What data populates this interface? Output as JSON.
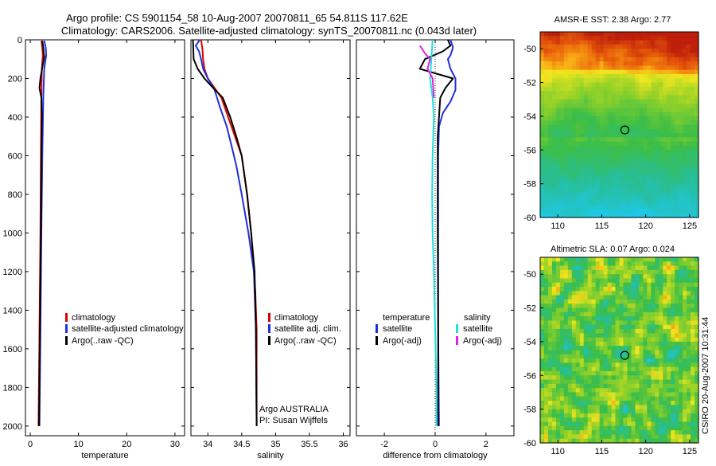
{
  "header": {
    "line1": "Argo profile: CS 5901154_58 10-Aug-2007 20070811_65 54.811S 117.62E",
    "line2": "Climatology: CARS2006. Satellite-adjusted climatology: synTS_20070811.nc (0.043d later)"
  },
  "side_label": "CSIRO 20-Aug-2007 10:31:44",
  "colors": {
    "red": "#dd0000",
    "blue": "#1f2fd8",
    "black": "#000000",
    "cyan": "#22dddd",
    "magenta": "#dd22dd"
  },
  "depth_ticks": [
    "0",
    "200",
    "400",
    "600",
    "800",
    "1000",
    "1200",
    "1400",
    "1600",
    "1800",
    "2000"
  ],
  "chart_data": [
    {
      "type": "line",
      "id": "temperature",
      "xlabel": "temperature",
      "xlim": [
        -1,
        32
      ],
      "ylim": [
        2050,
        0
      ],
      "xticks": [
        "0",
        "10",
        "20",
        "30"
      ],
      "xtick_values": [
        0,
        10,
        20,
        30
      ],
      "legend": [
        "climatology",
        "satellite-adjusted climatology",
        "Argo(..raw -QC)"
      ],
      "series": [
        {
          "name": "climatology",
          "color": "red",
          "points": [
            [
              2.3,
              5
            ],
            [
              2.5,
              40
            ],
            [
              2.6,
              80
            ],
            [
              2.4,
              150
            ],
            [
              2.3,
              300
            ],
            [
              2.2,
              600
            ],
            [
              2.1,
              1000
            ],
            [
              1.9,
              1500
            ],
            [
              1.7,
              2000
            ]
          ]
        },
        {
          "name": "satellite-adjusted climatology",
          "color": "blue",
          "points": [
            [
              2.9,
              5
            ],
            [
              3.2,
              40
            ],
            [
              3.3,
              80
            ],
            [
              2.9,
              150
            ],
            [
              2.7,
              300
            ],
            [
              2.5,
              600
            ],
            [
              2.3,
              1000
            ],
            [
              2.1,
              1500
            ],
            [
              1.9,
              2000
            ]
          ]
        },
        {
          "name": "Argo(..raw -QC)",
          "color": "black",
          "points": [
            [
              2.5,
              5
            ],
            [
              2.7,
              40
            ],
            [
              2.8,
              70
            ],
            [
              2.9,
              90
            ],
            [
              2.6,
              130
            ],
            [
              2.1,
              200
            ],
            [
              1.9,
              250
            ],
            [
              2.3,
              300
            ],
            [
              2.4,
              400
            ],
            [
              2.3,
              600
            ],
            [
              2.2,
              1000
            ],
            [
              2.0,
              1500
            ],
            [
              1.8,
              2000
            ]
          ]
        }
      ]
    },
    {
      "type": "line",
      "id": "salinity",
      "xlabel": "salinity",
      "xlim": [
        33.75,
        36.1
      ],
      "ylim": [
        2050,
        0
      ],
      "xticks": [
        "34",
        "34.5",
        "35",
        "35.5",
        "36"
      ],
      "xtick_values": [
        34,
        34.5,
        35,
        35.5,
        36
      ],
      "legend": [
        "climatology",
        "satellite adj. clim.",
        "Argo(..raw -QC)"
      ],
      "footer": [
        "Argo AUSTRALIA",
        "PI: Susan Wijffels"
      ],
      "series": [
        {
          "name": "climatology",
          "color": "red",
          "points": [
            [
              33.9,
              0
            ],
            [
              33.92,
              50
            ],
            [
              33.93,
              100
            ],
            [
              33.95,
              150
            ],
            [
              34.0,
              200
            ],
            [
              34.1,
              250
            ],
            [
              34.2,
              300
            ],
            [
              34.3,
              400
            ],
            [
              34.4,
              500
            ],
            [
              34.5,
              600
            ],
            [
              34.58,
              800
            ],
            [
              34.64,
              1000
            ],
            [
              34.7,
              1300
            ],
            [
              34.72,
              1500
            ],
            [
              34.72,
              2000
            ]
          ]
        },
        {
          "name": "satellite adj. clim.",
          "color": "blue",
          "points": [
            [
              33.88,
              0
            ],
            [
              33.82,
              30
            ],
            [
              33.87,
              60
            ],
            [
              33.9,
              100
            ],
            [
              33.93,
              150
            ],
            [
              34.0,
              200
            ],
            [
              34.1,
              260
            ],
            [
              34.18,
              350
            ],
            [
              34.28,
              450
            ],
            [
              34.35,
              550
            ],
            [
              34.42,
              650
            ],
            [
              34.5,
              800
            ],
            [
              34.6,
              1000
            ],
            [
              34.68,
              1200
            ],
            [
              34.71,
              1500
            ],
            [
              34.72,
              2000
            ]
          ]
        },
        {
          "name": "Argo(..raw -QC)",
          "color": "black",
          "points": [
            [
              33.78,
              0
            ],
            [
              33.79,
              100
            ],
            [
              33.85,
              150
            ],
            [
              33.95,
              200
            ],
            [
              34.08,
              250
            ],
            [
              34.22,
              300
            ],
            [
              34.33,
              400
            ],
            [
              34.42,
              500
            ],
            [
              34.5,
              600
            ],
            [
              34.58,
              800
            ],
            [
              34.64,
              1000
            ],
            [
              34.69,
              1200
            ],
            [
              34.71,
              1500
            ],
            [
              34.72,
              2000
            ]
          ]
        }
      ]
    },
    {
      "type": "line",
      "id": "difference",
      "xlabel": "difference from climatology",
      "xlim": [
        -3.1,
        3.1
      ],
      "ylim": [
        2050,
        0
      ],
      "xticks": [
        "-2",
        "0",
        "2"
      ],
      "xtick_values": [
        -2,
        0,
        2
      ],
      "legend_headers": [
        "temperature",
        "salinity"
      ],
      "legend_temperature": [
        "satellite",
        "Argo(-adj)"
      ],
      "legend_salinity": [
        "satellite",
        "Argo(-adj)"
      ],
      "series": [
        {
          "name": "temperature satellite",
          "color": "blue",
          "points": [
            [
              0.6,
              0
            ],
            [
              0.7,
              40
            ],
            [
              0.6,
              80
            ],
            [
              0.5,
              100
            ],
            [
              0.6,
              150
            ],
            [
              0.8,
              200
            ],
            [
              0.8,
              260
            ],
            [
              0.6,
              320
            ],
            [
              0.3,
              380
            ],
            [
              0.15,
              450
            ],
            [
              0.12,
              600
            ],
            [
              0.12,
              1000
            ],
            [
              0.12,
              1500
            ],
            [
              0.15,
              2000
            ]
          ]
        },
        {
          "name": "temperature Argo(-adj)",
          "color": "black",
          "points": [
            [
              0.5,
              0
            ],
            [
              0.6,
              30
            ],
            [
              0.3,
              60
            ],
            [
              -0.4,
              100
            ],
            [
              -0.6,
              150
            ],
            [
              0.7,
              200
            ],
            [
              0.4,
              250
            ],
            [
              0.2,
              300
            ],
            [
              0.15,
              400
            ],
            [
              0.1,
              500
            ],
            [
              0.1,
              700
            ],
            [
              0.1,
              1000
            ],
            [
              0.12,
              1500
            ],
            [
              0.12,
              2000
            ]
          ]
        },
        {
          "name": "salinity satellite",
          "color": "cyan",
          "points": [
            [
              -0.1,
              0
            ],
            [
              -0.15,
              100
            ],
            [
              -0.2,
              200
            ],
            [
              -0.1,
              300
            ],
            [
              -0.05,
              400
            ],
            [
              -0.1,
              600
            ],
            [
              -0.12,
              800
            ],
            [
              -0.1,
              1000
            ],
            [
              -0.05,
              1200
            ],
            [
              0.0,
              1500
            ],
            [
              0.05,
              1800
            ],
            [
              0.05,
              2000
            ]
          ]
        },
        {
          "name": "salinity Argo(-adj)",
          "color": "magenta",
          "points": [
            [
              -0.6,
              30
            ],
            [
              -0.4,
              70
            ],
            [
              -0.2,
              100
            ],
            [
              -0.3,
              150
            ],
            [
              -0.1,
              200
            ],
            [
              -0.05,
              300
            ]
          ]
        }
      ]
    },
    {
      "type": "heatmap",
      "id": "sst",
      "title": "AMSR-E SST: 2.38 Argo: 2.77",
      "xlim": [
        108,
        126
      ],
      "ylim": [
        -60,
        -49
      ],
      "xticks": [
        "110",
        "115",
        "120",
        "125"
      ],
      "xtick_values": [
        110,
        115,
        120,
        125
      ],
      "yticks": [
        "-50",
        "-52",
        "-54",
        "-56",
        "-58",
        "-60"
      ],
      "ytick_values": [
        -50,
        -52,
        -54,
        -56,
        -58,
        -60
      ],
      "marker": {
        "lon": 117.62,
        "lat": -54.811
      }
    },
    {
      "type": "heatmap",
      "id": "sla",
      "title": "Altimetric SLA: 0.07 Argo: 0.024",
      "xlim": [
        108,
        126
      ],
      "ylim": [
        -60,
        -49
      ],
      "xticks": [
        "110",
        "115",
        "120",
        "125"
      ],
      "xtick_values": [
        110,
        115,
        120,
        125
      ],
      "yticks": [
        "-50",
        "-52",
        "-54",
        "-56",
        "-58",
        "-60"
      ],
      "ytick_values": [
        -50,
        -52,
        -54,
        -56,
        -58,
        -60
      ],
      "marker": {
        "lon": 117.62,
        "lat": -54.811
      }
    }
  ]
}
